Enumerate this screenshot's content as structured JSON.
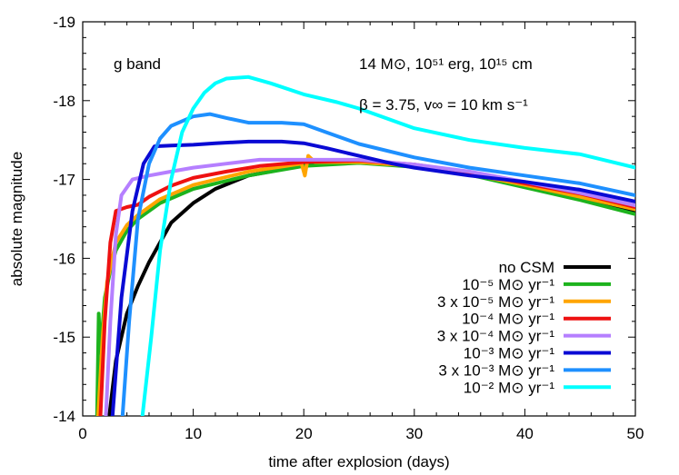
{
  "chart_data": {
    "type": "line",
    "xlabel": "time after explosion (days)",
    "ylabel": "absolute magnitude",
    "xlim": [
      0,
      50
    ],
    "ylim": [
      -14,
      -19
    ],
    "y_inverted": true,
    "grid": false,
    "legend_position": "bottom-right",
    "x_ticks": [
      "0",
      "10",
      "20",
      "30",
      "40",
      "50"
    ],
    "y_ticks": [
      "-19",
      "-18",
      "-17",
      "-16",
      "-15",
      "-14"
    ],
    "annotations": {
      "band": "g band",
      "params_line1": "14 M⊙, 10⁵¹ erg, 10¹⁵ cm",
      "params_line2": "β = 3.75, v∞ = 10 km s⁻¹"
    },
    "series": [
      {
        "name": "no CSM",
        "color": "#000000",
        "points": [
          [
            2.4,
            -14
          ],
          [
            3,
            -14.7
          ],
          [
            4,
            -15.3
          ],
          [
            5,
            -15.65
          ],
          [
            6,
            -15.95
          ],
          [
            7,
            -16.2
          ],
          [
            8,
            -16.45
          ],
          [
            10,
            -16.7
          ],
          [
            12,
            -16.88
          ],
          [
            15,
            -17.05
          ],
          [
            20,
            -17.18
          ],
          [
            25,
            -17.22
          ],
          [
            30,
            -17.18
          ],
          [
            35,
            -17.08
          ],
          [
            40,
            -16.93
          ],
          [
            45,
            -16.77
          ],
          [
            50,
            -16.58
          ]
        ]
      },
      {
        "name": "10⁻⁵ M⊙ yr⁻¹",
        "color": "#1db31d",
        "points": [
          [
            1.3,
            -14
          ],
          [
            1.45,
            -15.3
          ],
          [
            1.6,
            -14.8
          ],
          [
            2,
            -15.5
          ],
          [
            2.5,
            -15.85
          ],
          [
            3,
            -16.1
          ],
          [
            4,
            -16.35
          ],
          [
            5,
            -16.5
          ],
          [
            7,
            -16.7
          ],
          [
            10,
            -16.88
          ],
          [
            15,
            -17.05
          ],
          [
            20,
            -17.17
          ],
          [
            25,
            -17.21
          ],
          [
            30,
            -17.16
          ],
          [
            35,
            -17.06
          ],
          [
            40,
            -16.9
          ],
          [
            45,
            -16.74
          ],
          [
            50,
            -16.56
          ]
        ]
      },
      {
        "name": "3 x 10⁻⁵ M⊙ yr⁻¹",
        "color": "#ffa500",
        "points": [
          [
            1.4,
            -14
          ],
          [
            1.8,
            -15
          ],
          [
            2.2,
            -15.7
          ],
          [
            3,
            -16.2
          ],
          [
            4,
            -16.42
          ],
          [
            5,
            -16.55
          ],
          [
            7,
            -16.75
          ],
          [
            10,
            -16.93
          ],
          [
            15,
            -17.1
          ],
          [
            19.8,
            -17.2
          ],
          [
            20.1,
            -17.05
          ],
          [
            20.4,
            -17.3
          ],
          [
            21,
            -17.22
          ],
          [
            25,
            -17.22
          ],
          [
            30,
            -17.17
          ],
          [
            35,
            -17.07
          ],
          [
            40,
            -16.93
          ],
          [
            45,
            -16.78
          ],
          [
            50,
            -16.62
          ]
        ]
      },
      {
        "name": "10⁻⁴ M⊙ yr⁻¹",
        "color": "#ee1111",
        "points": [
          [
            1.6,
            -14
          ],
          [
            2,
            -15.2
          ],
          [
            2.5,
            -16.2
          ],
          [
            3,
            -16.6
          ],
          [
            4,
            -16.65
          ],
          [
            5,
            -16.68
          ],
          [
            6,
            -16.78
          ],
          [
            8,
            -16.92
          ],
          [
            10,
            -17.02
          ],
          [
            13,
            -17.1
          ],
          [
            16,
            -17.17
          ],
          [
            20,
            -17.22
          ],
          [
            25,
            -17.24
          ],
          [
            30,
            -17.19
          ],
          [
            35,
            -17.09
          ],
          [
            40,
            -16.95
          ],
          [
            45,
            -16.82
          ],
          [
            50,
            -16.65
          ]
        ]
      },
      {
        "name": "3 x 10⁻⁴ M⊙ yr⁻¹",
        "color": "#b57fff",
        "points": [
          [
            2.1,
            -14
          ],
          [
            2.5,
            -15.2
          ],
          [
            3,
            -16.3
          ],
          [
            3.5,
            -16.8
          ],
          [
            4.5,
            -17
          ],
          [
            6,
            -17.05
          ],
          [
            8,
            -17.1
          ],
          [
            10,
            -17.15
          ],
          [
            13,
            -17.2
          ],
          [
            16,
            -17.25
          ],
          [
            20,
            -17.25
          ],
          [
            25,
            -17.25
          ],
          [
            30,
            -17.19
          ],
          [
            35,
            -17.1
          ],
          [
            40,
            -16.97
          ],
          [
            45,
            -16.83
          ],
          [
            50,
            -16.67
          ]
        ]
      },
      {
        "name": "10⁻³ M⊙ yr⁻¹",
        "color": "#0a0ad4",
        "points": [
          [
            2.7,
            -14
          ],
          [
            3.5,
            -15.5
          ],
          [
            4.5,
            -16.6
          ],
          [
            5.5,
            -17.2
          ],
          [
            6.5,
            -17.42
          ],
          [
            8,
            -17.43
          ],
          [
            10,
            -17.44
          ],
          [
            12,
            -17.46
          ],
          [
            15,
            -17.48
          ],
          [
            18,
            -17.48
          ],
          [
            20,
            -17.46
          ],
          [
            22,
            -17.4
          ],
          [
            25,
            -17.3
          ],
          [
            28,
            -17.2
          ],
          [
            30,
            -17.15
          ],
          [
            35,
            -17.05
          ],
          [
            40,
            -16.97
          ],
          [
            45,
            -16.87
          ],
          [
            50,
            -16.72
          ]
        ]
      },
      {
        "name": "3 x 10⁻³ M⊙ yr⁻¹",
        "color": "#1e90ff",
        "points": [
          [
            3.6,
            -14
          ],
          [
            4.2,
            -15.2
          ],
          [
            5,
            -16.5
          ],
          [
            6,
            -17.2
          ],
          [
            7,
            -17.52
          ],
          [
            8,
            -17.68
          ],
          [
            10,
            -17.8
          ],
          [
            11.5,
            -17.83
          ],
          [
            13,
            -17.78
          ],
          [
            15,
            -17.72
          ],
          [
            18,
            -17.72
          ],
          [
            20,
            -17.7
          ],
          [
            22,
            -17.6
          ],
          [
            25,
            -17.45
          ],
          [
            30,
            -17.28
          ],
          [
            35,
            -17.15
          ],
          [
            40,
            -17.05
          ],
          [
            45,
            -16.95
          ],
          [
            50,
            -16.8
          ]
        ]
      },
      {
        "name": "10⁻² M⊙ yr⁻¹",
        "color": "#00ffff",
        "points": [
          [
            5.4,
            -14
          ],
          [
            6.2,
            -15
          ],
          [
            7,
            -16.1
          ],
          [
            8,
            -17
          ],
          [
            9,
            -17.6
          ],
          [
            10,
            -17.9
          ],
          [
            11,
            -18.1
          ],
          [
            12,
            -18.22
          ],
          [
            13,
            -18.28
          ],
          [
            15,
            -18.3
          ],
          [
            17,
            -18.22
          ],
          [
            20,
            -18.08
          ],
          [
            23,
            -17.98
          ],
          [
            25,
            -17.9
          ],
          [
            30,
            -17.65
          ],
          [
            35,
            -17.5
          ],
          [
            40,
            -17.4
          ],
          [
            45,
            -17.32
          ],
          [
            50,
            -17.15
          ]
        ]
      }
    ]
  }
}
